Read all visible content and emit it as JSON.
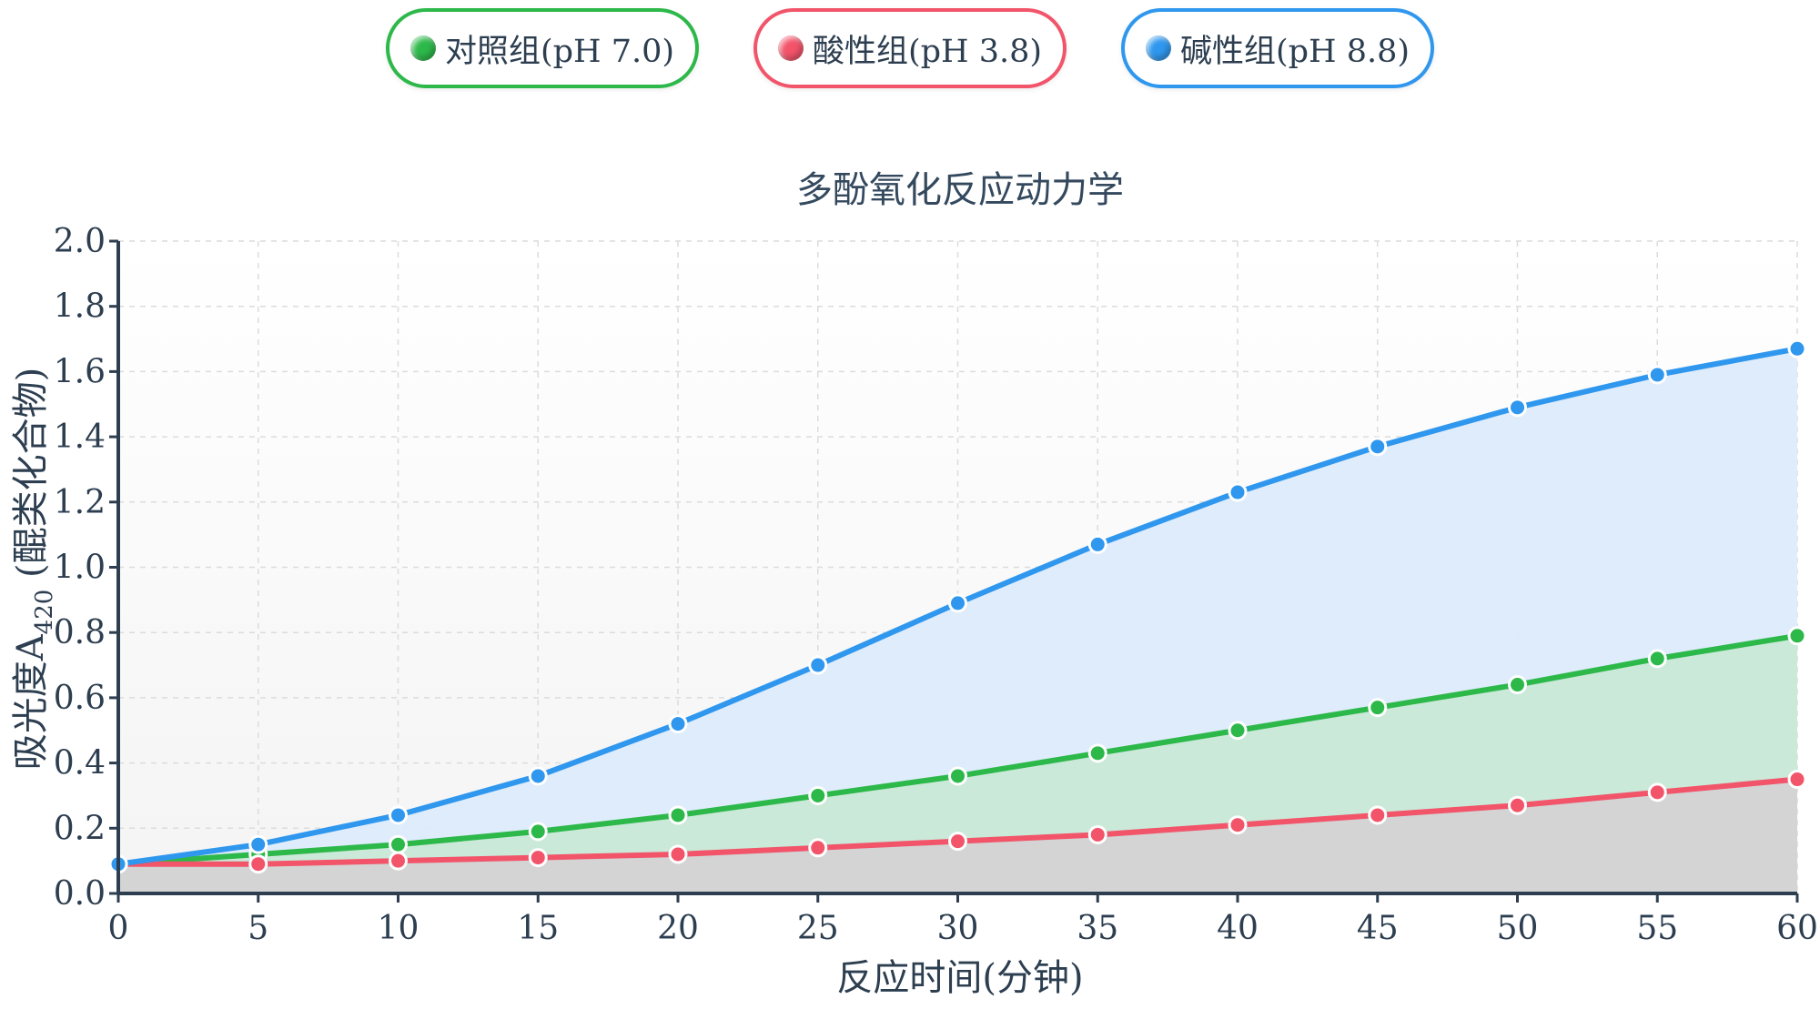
{
  "chart_data": {
    "type": "line",
    "title": "多酚氧化反应动力学",
    "xlabel": "反应时间(分钟)",
    "ylabel": "吸光度A",
    "ylabel_sub": "420",
    "ylabel_suffix": " (醌类化合物)",
    "x": [
      0,
      5,
      10,
      15,
      20,
      25,
      30,
      35,
      40,
      45,
      50,
      55,
      60
    ],
    "xlim": [
      0,
      60
    ],
    "ylim": [
      0,
      2.0
    ],
    "x_ticks": [
      "0",
      "5",
      "10",
      "15",
      "20",
      "25",
      "30",
      "35",
      "40",
      "45",
      "50",
      "55",
      "60"
    ],
    "y_ticks": [
      "0.0",
      "0.2",
      "0.4",
      "0.6",
      "0.8",
      "1.0",
      "1.2",
      "1.4",
      "1.6",
      "1.8",
      "2.0"
    ],
    "grid": true,
    "legend_position": "top-center",
    "series": [
      {
        "name": "对照组(pH 7.0)",
        "color": "#2db84a",
        "fill": "#c8e9d6",
        "values": [
          0.09,
          0.12,
          0.15,
          0.19,
          0.24,
          0.3,
          0.36,
          0.43,
          0.5,
          0.57,
          0.64,
          0.72,
          0.79
        ]
      },
      {
        "name": "酸性组(pH 3.8)",
        "color": "#f2546a",
        "fill": "#d3d3d3",
        "values": [
          0.09,
          0.09,
          0.1,
          0.11,
          0.12,
          0.14,
          0.16,
          0.18,
          0.21,
          0.24,
          0.27,
          0.31,
          0.35
        ]
      },
      {
        "name": "碱性组(pH 8.8)",
        "color": "#2f97ee",
        "fill": "#dcebfb",
        "values": [
          0.09,
          0.15,
          0.24,
          0.36,
          0.52,
          0.7,
          0.89,
          1.07,
          1.23,
          1.37,
          1.49,
          1.59,
          1.67
        ]
      }
    ]
  }
}
